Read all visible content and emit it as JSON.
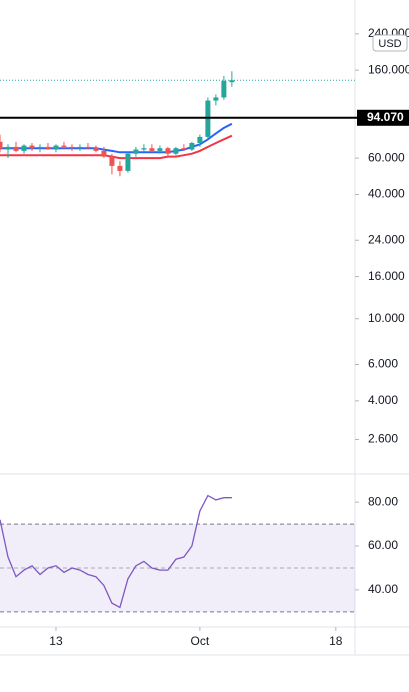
{
  "chart_data": [
    {
      "type": "candlestick",
      "x": [
        -7,
        -6,
        -5,
        -4,
        -3,
        -2,
        -1,
        0,
        1,
        2,
        3,
        4,
        5,
        6,
        7,
        8,
        9,
        10,
        11,
        12,
        13,
        14,
        15,
        16,
        17,
        18,
        19,
        20,
        21,
        22
      ],
      "open": [
        72,
        66,
        68,
        65,
        69,
        67,
        68,
        66,
        69,
        68,
        67,
        68,
        67,
        65,
        61,
        55,
        52,
        63,
        66,
        67,
        65,
        67,
        63,
        67,
        66,
        71,
        76,
        114,
        118,
        140
      ],
      "high": [
        78,
        70,
        72,
        70,
        71,
        70,
        71,
        70,
        72,
        70,
        70,
        71,
        69,
        68,
        63,
        58,
        64,
        68,
        70,
        70,
        69,
        68,
        68,
        70,
        72,
        78,
        118,
        122,
        150,
        158
      ],
      "low": [
        64,
        60,
        64,
        63,
        65,
        64,
        66,
        64,
        66,
        65,
        65,
        66,
        64,
        60,
        50,
        49,
        51,
        61,
        64,
        64,
        63,
        61,
        62,
        65,
        65,
        68,
        75,
        108,
        115,
        133
      ],
      "close": [
        66,
        68,
        65,
        69,
        67,
        68,
        66,
        69,
        68,
        67,
        68,
        67,
        65,
        61,
        55,
        52,
        63,
        66,
        67,
        65,
        67,
        63,
        67,
        66,
        71,
        76,
        114,
        118,
        142,
        143
      ],
      "up_color": "#26a69a",
      "down_color": "#ef5350",
      "series": [
        {
          "color": "#2962ff",
          "values": [
            67,
            67,
            67,
            67,
            67,
            67,
            67,
            67,
            67,
            67,
            67,
            67,
            67,
            66,
            65,
            64,
            64,
            64,
            64,
            64,
            64,
            64,
            65,
            66,
            68,
            70,
            74,
            79,
            84,
            88
          ]
        },
        {
          "color": "#f23645",
          "values": [
            62,
            62,
            62,
            62,
            62,
            62,
            62,
            62,
            62,
            62,
            62,
            62,
            62,
            62,
            61,
            60,
            60,
            60,
            60,
            60,
            60,
            61,
            61,
            62,
            63,
            65,
            68,
            71,
            74,
            77
          ]
        }
      ],
      "xlim": [
        -7,
        37.4
      ],
      "ylim": [
        1.85,
        350
      ],
      "yscale": "log",
      "yticks": [
        {
          "value": 240,
          "label": "240.000"
        },
        {
          "value": 160,
          "label": "160.000"
        },
        {
          "value": 60,
          "label": "60.000"
        },
        {
          "value": 40,
          "label": "40.000"
        },
        {
          "value": 24,
          "label": "24.000"
        },
        {
          "value": 16,
          "label": "16.000"
        },
        {
          "value": 10,
          "label": "10.000"
        },
        {
          "value": 6,
          "label": "6.000"
        },
        {
          "value": 4,
          "label": "4.000"
        },
        {
          "value": 2.6,
          "label": "2.600"
        }
      ],
      "currency": "USD",
      "hline": {
        "value": 94.07,
        "label": "94.070",
        "color": "#000000"
      }
    },
    {
      "type": "line",
      "x": [
        -7,
        -6,
        -5,
        -4,
        -3,
        -2,
        -1,
        0,
        1,
        2,
        3,
        4,
        5,
        6,
        7,
        8,
        9,
        10,
        11,
        12,
        13,
        14,
        15,
        16,
        17,
        18,
        19,
        20,
        21,
        22
      ],
      "series": [
        {
          "color": "#7e57c2",
          "values": [
            72,
            55,
            46,
            49,
            51,
            47,
            50,
            51,
            48,
            50,
            49,
            47,
            46,
            42,
            34,
            32,
            45,
            51,
            53,
            50,
            49,
            49,
            54,
            55,
            60,
            76,
            83,
            81,
            82,
            82
          ]
        }
      ],
      "xlim": [
        -7,
        37.4
      ],
      "xticks": [
        {
          "value": 0,
          "label": "13"
        },
        {
          "value": 18,
          "label": "Oct"
        },
        {
          "value": 35,
          "label": "18"
        }
      ],
      "ylim": [
        24,
        91
      ],
      "yticks": [
        {
          "value": 80,
          "label": "80.00"
        },
        {
          "value": 60,
          "label": "60.00"
        },
        {
          "value": 40,
          "label": "40.00"
        }
      ],
      "band": [
        30,
        70
      ],
      "midline": 50
    }
  ]
}
